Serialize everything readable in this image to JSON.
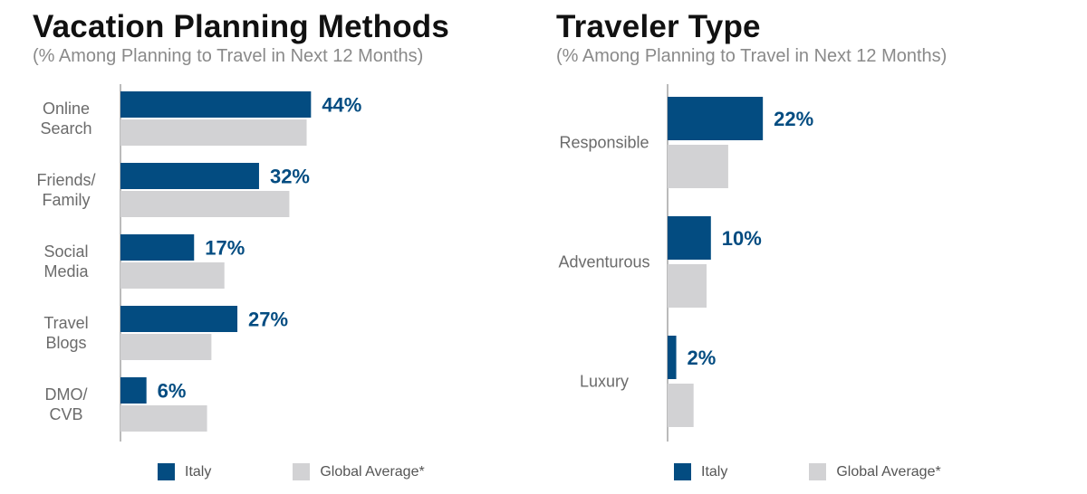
{
  "colors": {
    "italy": "#034c81",
    "global": "#d2d2d4",
    "axis": "#777777"
  },
  "legend": {
    "italy": "Italy",
    "global": "Global Average*"
  },
  "chart_data": [
    {
      "type": "bar",
      "orientation": "horizontal",
      "title": "Vacation Planning Methods",
      "subtitle": "(% Among Planning to Travel in Next 12 Months)",
      "categories": [
        [
          "Online",
          "Search"
        ],
        [
          "Friends/",
          "Family"
        ],
        [
          "Social",
          "Media"
        ],
        [
          "Travel",
          "Blogs"
        ],
        [
          "DMO/",
          "CVB"
        ]
      ],
      "series": [
        {
          "name": "Italy",
          "values": [
            44,
            32,
            17,
            27,
            6
          ],
          "labels": [
            "44%",
            "32%",
            "17%",
            "27%",
            "6%"
          ]
        },
        {
          "name": "Global Average*",
          "values": [
            43,
            39,
            24,
            21,
            20
          ]
        }
      ],
      "xlim": [
        0,
        50
      ]
    },
    {
      "type": "bar",
      "orientation": "horizontal",
      "title": "Traveler Type",
      "subtitle": "(% Among Planning to Travel in Next 12 Months)",
      "categories": [
        [
          "Responsible"
        ],
        [
          "Adventurous"
        ],
        [
          "Luxury"
        ]
      ],
      "series": [
        {
          "name": "Italy",
          "values": [
            22,
            10,
            2
          ],
          "labels": [
            "22%",
            "10%",
            "2%"
          ]
        },
        {
          "name": "Global Average*",
          "values": [
            14,
            9,
            6
          ]
        }
      ],
      "xlim": [
        0,
        50
      ]
    }
  ]
}
